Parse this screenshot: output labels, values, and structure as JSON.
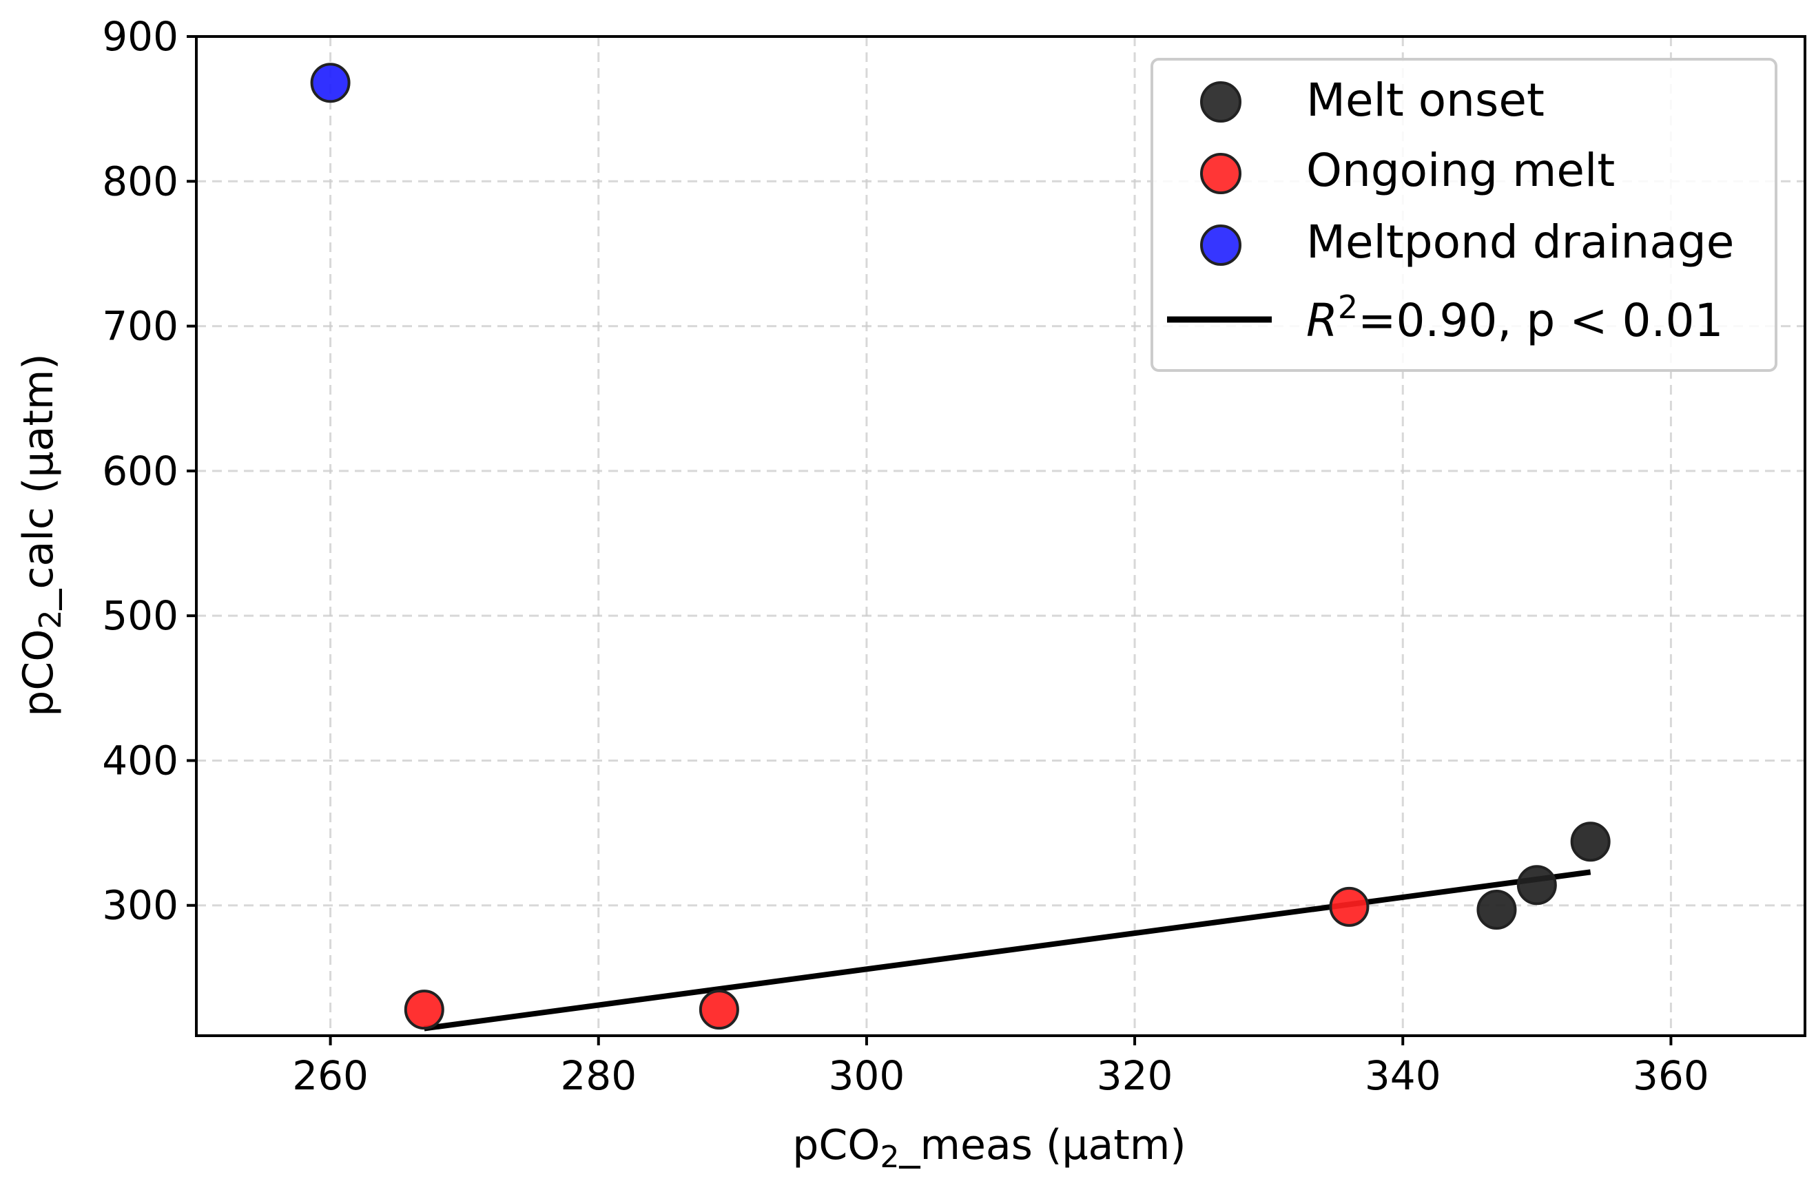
{
  "chart_data": {
    "type": "scatter",
    "title": "",
    "xlabel": "pCO2_meas (µatm)",
    "ylabel": "pCO2_calc (µatm)",
    "xlabel_parts": {
      "pre": "pCO",
      "sub": "2",
      "post": "_meas (µatm)"
    },
    "ylabel_parts": {
      "pre": "pCO",
      "sub": "2",
      "post": "_calc (µatm)"
    },
    "xlim": [
      250,
      370
    ],
    "ylim": [
      210,
      900
    ],
    "xticks": [
      260,
      280,
      300,
      320,
      340,
      360
    ],
    "yticks": [
      300,
      400,
      500,
      600,
      700,
      800,
      900
    ],
    "grid": true,
    "legend_position": "top-right",
    "series": [
      {
        "name": "Melt onset",
        "color": "#222222",
        "points": [
          {
            "x": 347,
            "y": 297
          },
          {
            "x": 350,
            "y": 314
          },
          {
            "x": 354,
            "y": 344
          }
        ]
      },
      {
        "name": "Ongoing melt",
        "color": "#ff2020",
        "points": [
          {
            "x": 267,
            "y": 228
          },
          {
            "x": 289,
            "y": 228
          },
          {
            "x": 336,
            "y": 299
          }
        ]
      },
      {
        "name": "Meltpond drainage",
        "color": "#2020ff",
        "points": [
          {
            "x": 260,
            "y": 868
          }
        ]
      }
    ],
    "regression": {
      "label": "R2=0.90, p < 0.01",
      "label_parts": {
        "r": "R",
        "sup": "2",
        "rest": "=0.90, p < 0.01"
      },
      "x": [
        267,
        354
      ],
      "y": [
        215,
        323
      ],
      "color": "#000000"
    }
  }
}
